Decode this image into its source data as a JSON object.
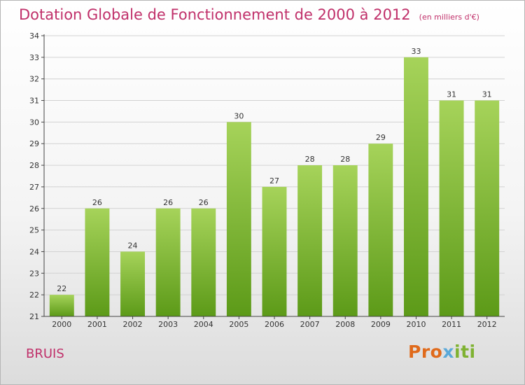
{
  "header": {
    "title": "Dotation Globale de Fonctionnement de 2000 à 2012",
    "unit_note": "(en milliers d'€)"
  },
  "place_name": "BRUIS",
  "logo_text": "Proxiti",
  "colors": {
    "title": "#c0306a",
    "bar_top": "#a6d35a",
    "bar_bottom": "#5c9a18",
    "grid": "#d2d2d2",
    "axis": "#444444",
    "label": "#333333"
  },
  "chart_data": {
    "type": "bar",
    "title": "Dotation Globale de Fonctionnement de 2000 à 2012",
    "xlabel": "",
    "ylabel": "(en milliers d'€)",
    "categories": [
      "2000",
      "2001",
      "2002",
      "2003",
      "2004",
      "2005",
      "2006",
      "2007",
      "2008",
      "2009",
      "2010",
      "2011",
      "2012"
    ],
    "values": [
      22,
      26,
      24,
      26,
      26,
      30,
      27,
      28,
      28,
      29,
      33,
      31,
      31
    ],
    "ylim": [
      21,
      34
    ],
    "yticks": [
      21,
      22,
      23,
      24,
      25,
      26,
      27,
      28,
      29,
      30,
      31,
      32,
      33,
      34
    ],
    "grid": true,
    "legend": "none"
  }
}
